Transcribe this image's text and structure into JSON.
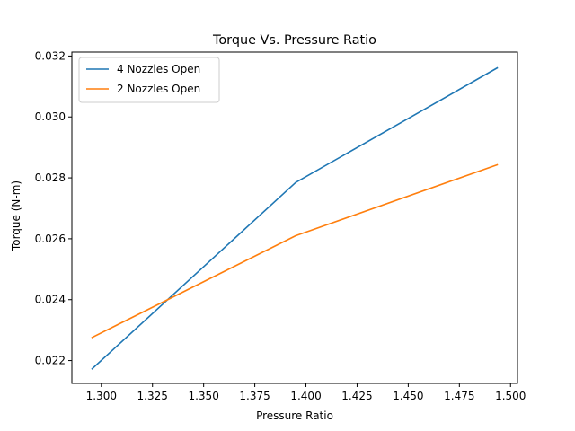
{
  "chart_data": {
    "type": "line",
    "title": "Torque Vs. Pressure Ratio",
    "xlabel": "Pressure Ratio",
    "ylabel": "Torque (N-m)",
    "xlim": [
      1.2856,
      1.5034
    ],
    "ylim": [
      0.02125,
      0.03213
    ],
    "xticks": [
      1.3,
      1.325,
      1.35,
      1.375,
      1.4,
      1.425,
      1.45,
      1.475,
      1.5
    ],
    "xtick_labels": [
      "1.300",
      "1.325",
      "1.350",
      "1.375",
      "1.400",
      "1.425",
      "1.450",
      "1.475",
      "1.500"
    ],
    "yticks": [
      0.022,
      0.024,
      0.026,
      0.028,
      0.03,
      0.032
    ],
    "ytick_labels": [
      "0.022",
      "0.024",
      "0.026",
      "0.028",
      "0.030",
      "0.032"
    ],
    "grid": false,
    "legend_position": "upper-left",
    "series": [
      {
        "name": "4 Nozzles Open",
        "color": "#1f77b4",
        "x": [
          1.2955,
          1.395,
          1.4935
        ],
        "y": [
          0.02173,
          0.02785,
          0.03161
        ]
      },
      {
        "name": "2 Nozzles Open",
        "color": "#ff7f0e",
        "x": [
          1.2955,
          1.395,
          1.4935
        ],
        "y": [
          0.02276,
          0.0261,
          0.02843
        ]
      }
    ]
  }
}
